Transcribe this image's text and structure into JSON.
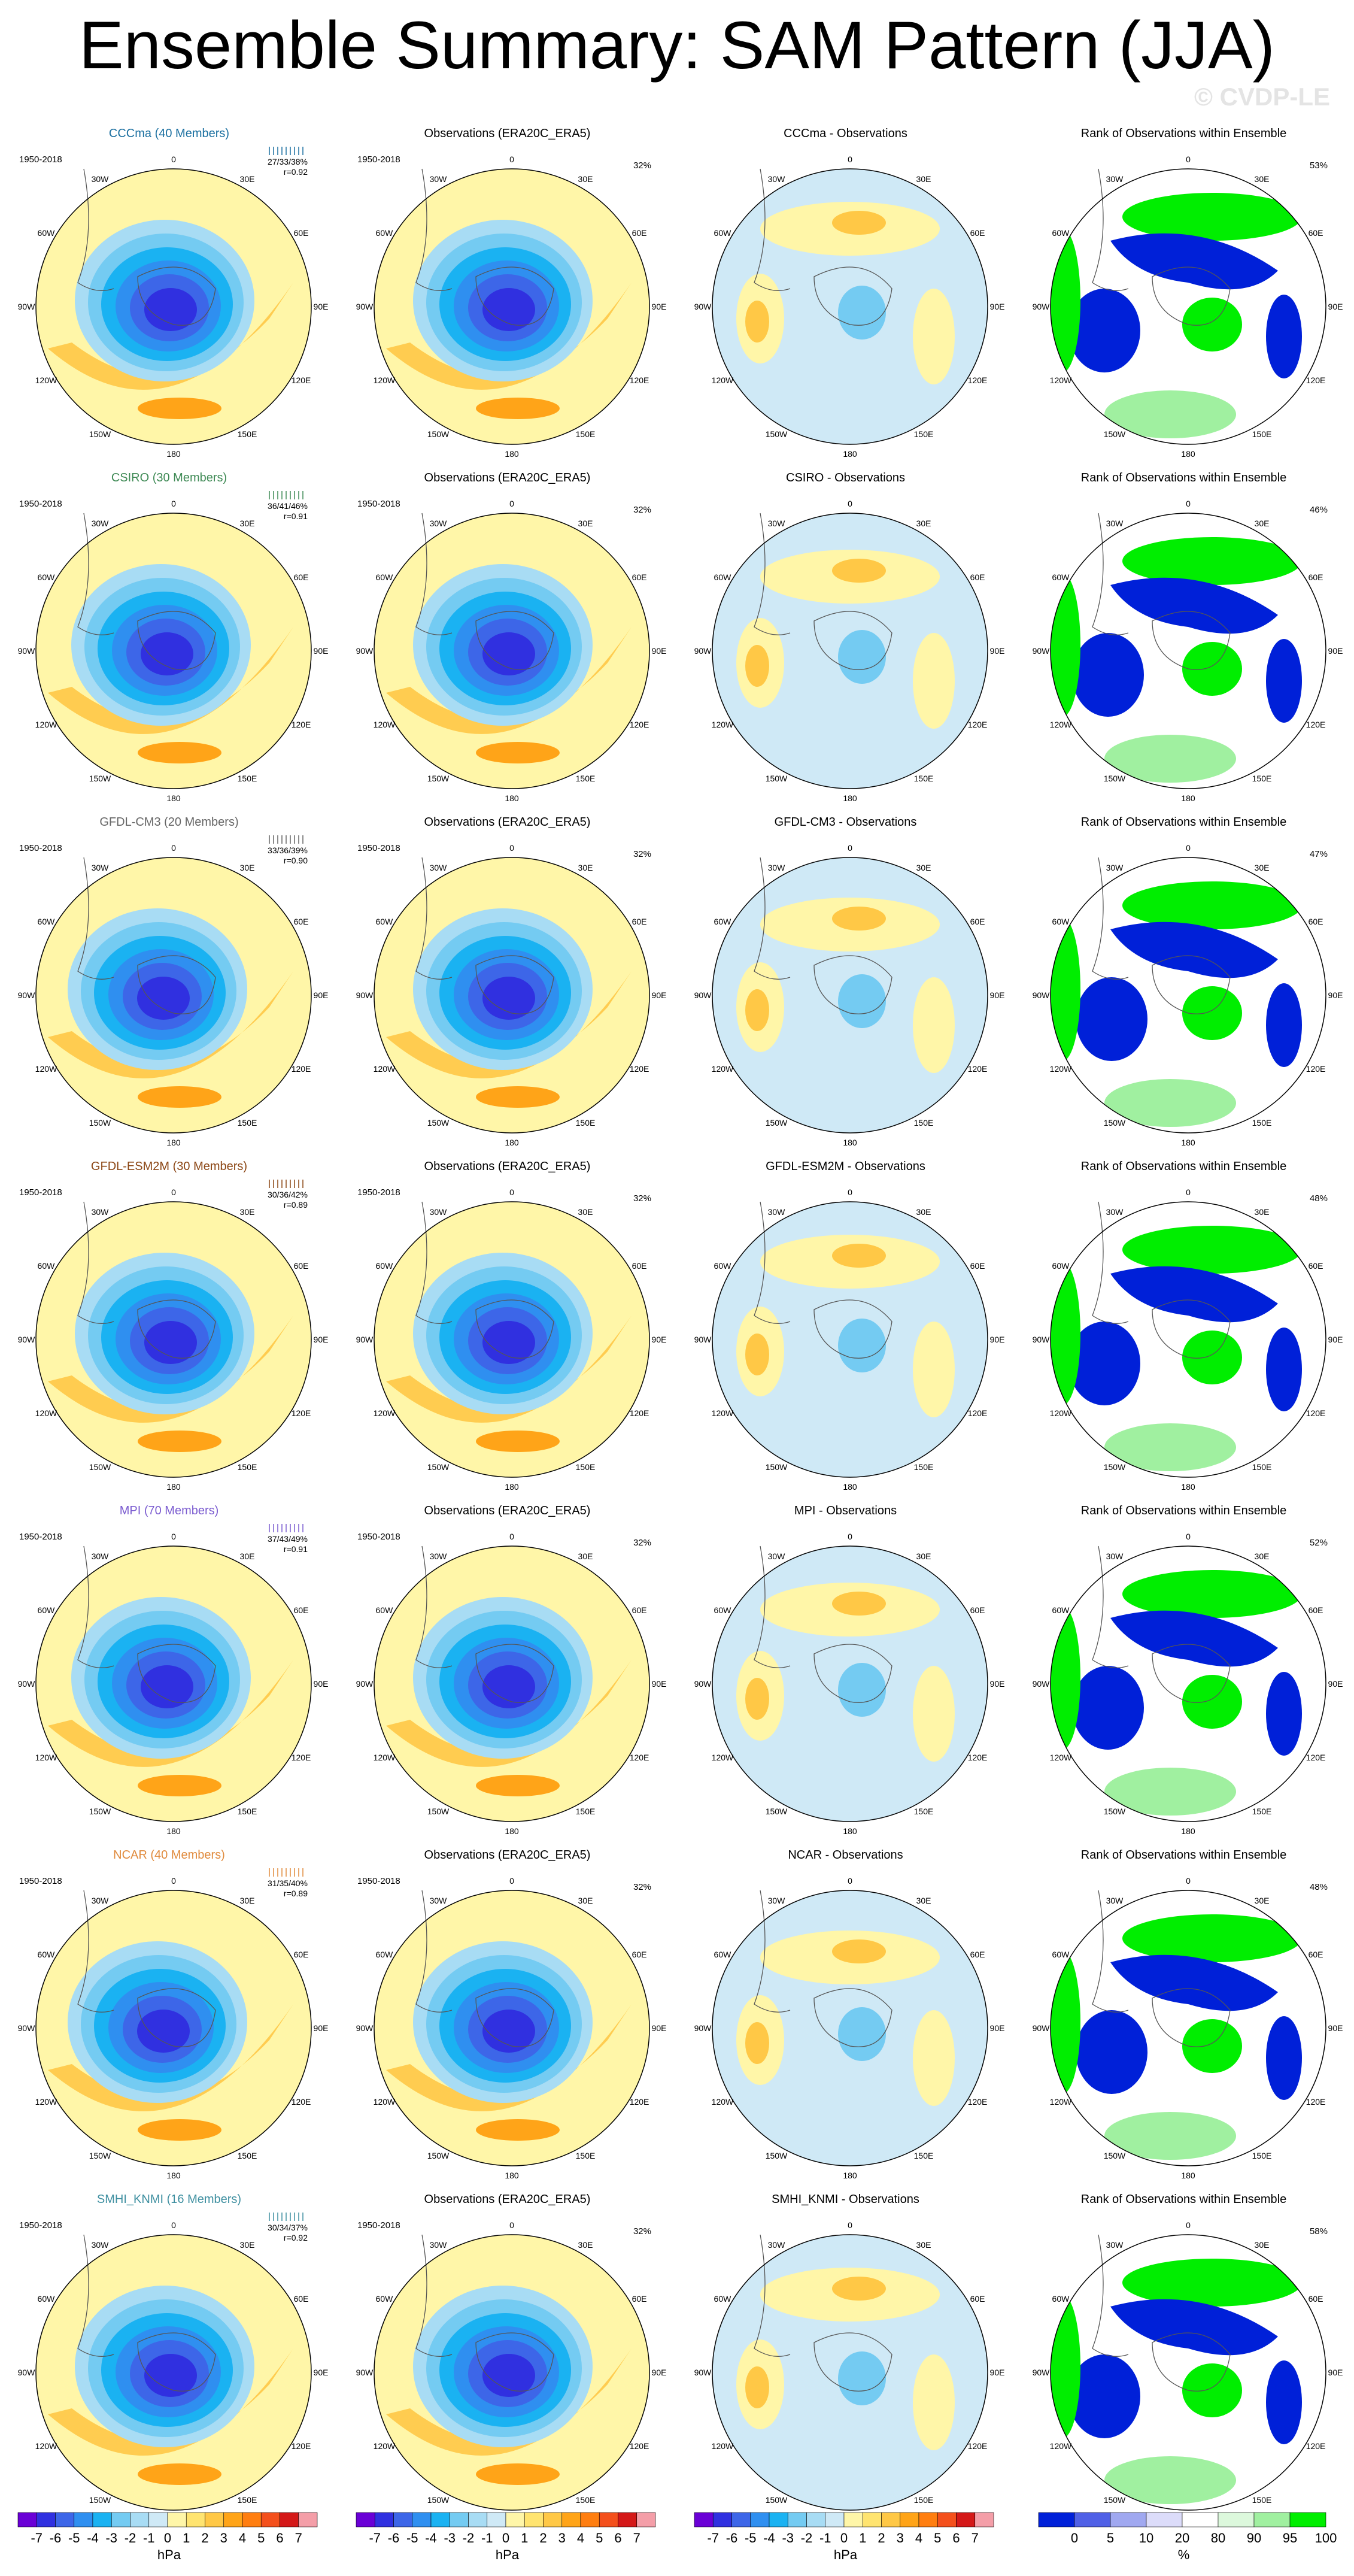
{
  "title": "Ensemble Summary: SAM Pattern (JJA)",
  "watermark": "© CVDP-LE",
  "period": "1950-2018",
  "obs_title": "Observations (ERA20C_ERA5)",
  "obs_pct": "32%",
  "rank_title": "Rank of Observations within Ensemble",
  "lon_labels": [
    "0",
    "30E",
    "60E",
    "90E",
    "120E",
    "150E",
    "180",
    "150W",
    "120W",
    "90W",
    "60W",
    "30W"
  ],
  "models": [
    {
      "title": "CCCma (40 Members)",
      "color": "#1a6fa0",
      "stats": "27/33/38%",
      "r": "r=0.92",
      "diff_title": "CCCma - Observations",
      "rank_pct": "53%"
    },
    {
      "title": "CSIRO (30 Members)",
      "color": "#3f8a55",
      "stats": "36/41/46%",
      "r": "r=0.91",
      "diff_title": "CSIRO - Observations",
      "rank_pct": "46%"
    },
    {
      "title": "GFDL-CM3 (20 Members)",
      "color": "#666666",
      "stats": "33/36/39%",
      "r": "r=0.90",
      "diff_title": "GFDL-CM3 - Observations",
      "rank_pct": "47%"
    },
    {
      "title": "GFDL-ESM2M (30 Members)",
      "color": "#8b4513",
      "stats": "30/36/42%",
      "r": "r=0.89",
      "diff_title": "GFDL-ESM2M - Observations",
      "rank_pct": "48%"
    },
    {
      "title": "MPI (70 Members)",
      "color": "#7b5cd0",
      "stats": "37/43/49%",
      "r": "r=0.91",
      "diff_title": "MPI - Observations",
      "rank_pct": "52%"
    },
    {
      "title": "NCAR (40 Members)",
      "color": "#e08a3c",
      "stats": "31/35/40%",
      "r": "r=0.89",
      "diff_title": "NCAR - Observations",
      "rank_pct": "48%"
    },
    {
      "title": "SMHI_KNMI (16 Members)",
      "color": "#3e8fa0",
      "stats": "30/34/37%",
      "r": "r=0.92",
      "diff_title": "SMHI_KNMI - Observations",
      "rank_pct": "58%"
    }
  ],
  "colorbar": {
    "unit": "hPa",
    "labels": [
      "-7",
      "-6",
      "-5",
      "-4",
      "-3",
      "-2",
      "-1",
      "0",
      "1",
      "2",
      "3",
      "4",
      "5",
      "6",
      "7"
    ],
    "colors": [
      "#6a00d6",
      "#3030e0",
      "#3d66e8",
      "#2f8ff0",
      "#1ab2f2",
      "#74cbf2",
      "#a8dcf4",
      "#cfe9f6",
      "#fff6a8",
      "#ffe470",
      "#ffc846",
      "#ffa418",
      "#ff7e10",
      "#f4501c",
      "#d41818",
      "#f49ea8"
    ]
  },
  "rank_colorbar": {
    "unit": "%",
    "labels": [
      "0",
      "5",
      "10",
      "20",
      "80",
      "90",
      "95",
      "100"
    ],
    "colors": [
      "#0020d8",
      "#5060e6",
      "#a0a8f0",
      "#dcdcfa",
      "#ffffff",
      "#dcf8dc",
      "#a0f0a0",
      "#00ee00"
    ]
  }
}
